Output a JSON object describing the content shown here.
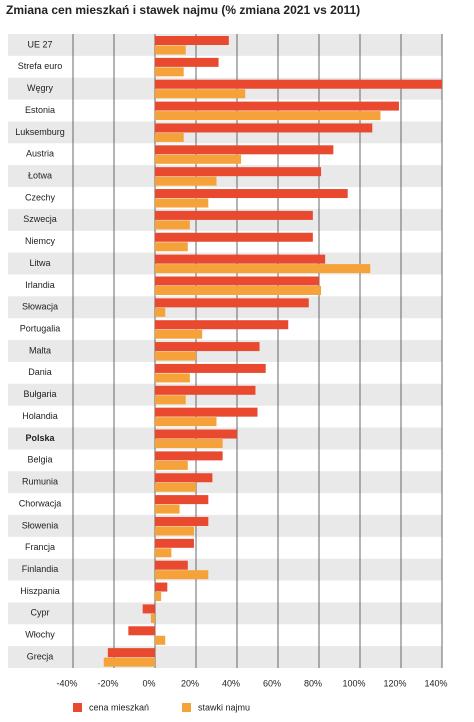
{
  "chart_data": {
    "type": "hbar",
    "title": "Zmiana cen mieszkań i stawek najmu (% zmiana 2021 vs 2011)",
    "categories": [
      "UE 27",
      "Strefa euro",
      "Węgry",
      "Estonia",
      "Luksemburg",
      "Austria",
      "Łotwa",
      "Czechy",
      "Szwecja",
      "Niemcy",
      "Litwa",
      "Irlandia",
      "Słowacja",
      "Portugalia",
      "Malta",
      "Dania",
      "Bułgaria",
      "Holandia",
      "Polska",
      "Belgia",
      "Rumunia",
      "Chorwacja",
      "Słowenia",
      "Francja",
      "Finlandia",
      "Hiszpania",
      "Cypr",
      "Włochy",
      "Grecja"
    ],
    "series": [
      {
        "name": "cena mieszkań",
        "color": "#e8492f",
        "values": [
          36,
          31,
          140,
          119,
          106,
          87,
          81,
          94,
          77,
          77,
          83,
          80,
          75,
          65,
          51,
          54,
          49,
          50,
          40,
          33,
          28,
          26,
          26,
          19,
          16,
          6,
          -6,
          -13,
          -23
        ]
      },
      {
        "name": "stawki najmu",
        "color": "#f5a23a",
        "values": [
          15,
          14,
          44,
          110,
          14,
          42,
          30,
          26,
          17,
          16,
          105,
          81,
          5,
          23,
          20,
          17,
          15,
          30,
          33,
          16,
          20,
          12,
          19,
          8,
          26,
          3,
          -2,
          5,
          -25
        ]
      }
    ],
    "xlim": [
      -40,
      140
    ],
    "xticks": [
      {
        "value": -40,
        "label": "-40%"
      },
      {
        "value": -20,
        "label": "-20%"
      },
      {
        "value": 0,
        "label": "0%"
      },
      {
        "value": 20,
        "label": "20%"
      },
      {
        "value": 40,
        "label": "40%"
      },
      {
        "value": 60,
        "label": "60%"
      },
      {
        "value": 80,
        "label": "80%"
      },
      {
        "value": 100,
        "label": "100%"
      },
      {
        "value": 120,
        "label": "120%"
      },
      {
        "value": 140,
        "label": "140%"
      }
    ],
    "grid": true,
    "legend": "bottom"
  }
}
